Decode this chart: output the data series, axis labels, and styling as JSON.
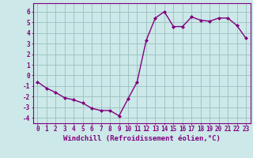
{
  "x": [
    0,
    1,
    2,
    3,
    4,
    5,
    6,
    7,
    8,
    9,
    10,
    11,
    12,
    13,
    14,
    15,
    16,
    17,
    18,
    19,
    20,
    21,
    22,
    23
  ],
  "y": [
    -0.6,
    -1.2,
    -1.6,
    -2.1,
    -2.3,
    -2.6,
    -3.1,
    -3.3,
    -3.3,
    -3.8,
    -2.2,
    -0.6,
    3.3,
    5.4,
    6.0,
    4.6,
    4.6,
    5.5,
    5.2,
    5.1,
    5.4,
    5.4,
    4.7,
    3.5
  ],
  "line_color": "#800080",
  "marker": "D",
  "marker_size": 2.0,
  "bg_color": "#cce8e8",
  "grid_color": "#9bbfbf",
  "xlabel": "Windchill (Refroidissement éolien,°C)",
  "xlim": [
    -0.5,
    23.5
  ],
  "ylim": [
    -4.5,
    6.8
  ],
  "yticks": [
    -4,
    -3,
    -2,
    -1,
    0,
    1,
    2,
    3,
    4,
    5,
    6
  ],
  "xticks": [
    0,
    1,
    2,
    3,
    4,
    5,
    6,
    7,
    8,
    9,
    10,
    11,
    12,
    13,
    14,
    15,
    16,
    17,
    18,
    19,
    20,
    21,
    22,
    23
  ],
  "tick_color": "#800080",
  "xlabel_fontsize": 6.5,
  "tick_fontsize": 5.5,
  "line_width": 1.0
}
